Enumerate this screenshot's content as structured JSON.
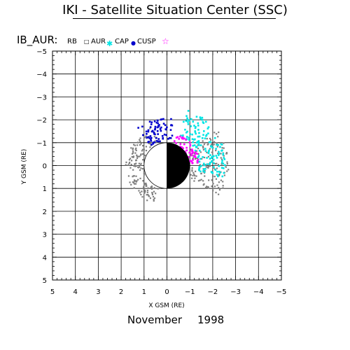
{
  "header": {
    "title": "IKI - Satellite Situation Center (SSC)",
    "panel_label": "IB_AUR:"
  },
  "legend": [
    {
      "label": "RB",
      "symbol": "",
      "color": "#000000"
    },
    {
      "label": "AUR",
      "symbol": "□",
      "color": "#000000"
    },
    {
      "label": "CAP",
      "symbol": "✱",
      "color": "#00e5e5"
    },
    {
      "label": "CUSP",
      "symbol": "●",
      "color": "#0000cc"
    },
    {
      "label": "",
      "symbol": "☆",
      "color": "#ff00ff"
    }
  ],
  "footer": {
    "month": "November",
    "year": "1998"
  },
  "chart_data": {
    "type": "scatter",
    "xlabel": "X GSM (RE)",
    "ylabel": "Y GSM (RE)",
    "xlim": [
      5,
      -5
    ],
    "ylim": [
      -5,
      5
    ],
    "x_ticks": [
      "5",
      "4",
      "3",
      "2",
      "1",
      "0",
      "−1",
      "−2",
      "−3",
      "−4",
      "−5"
    ],
    "y_ticks": [
      "−5",
      "−4",
      "−3",
      "−2",
      "−1",
      "0",
      "1",
      "2",
      "3",
      "4",
      "5"
    ],
    "grid": true,
    "earth": {
      "center": [
        0,
        0
      ],
      "radius": 1,
      "night_side": "negative-x"
    },
    "series": [
      {
        "name": "RB",
        "color": "#808080",
        "regions": [
          {
            "xc": 0.0,
            "yc": 0.0,
            "r_in": 1.05,
            "r_out": 1.8,
            "t_from": -70,
            "t_to": 70
          },
          {
            "xc": 0.0,
            "yc": 0.0,
            "r_in": 1.1,
            "r_out": 2.7,
            "t_from": 150,
            "t_to": 215
          }
        ]
      },
      {
        "name": "CAP",
        "color": "#00e5e5",
        "regions": [
          {
            "xc": 0.0,
            "yc": 0.0,
            "r_in": 1.4,
            "r_out": 2.6,
            "t_from": 168,
            "t_to": 252
          }
        ]
      },
      {
        "name": "CUSP",
        "color": "#0000cc",
        "regions": [
          {
            "xc": 0.0,
            "yc": 0.0,
            "r_in": 1.1,
            "r_out": 2.1,
            "t_from": 260,
            "t_to": 310
          }
        ]
      },
      {
        "name": "AUR",
        "color": "#ff00ff",
        "regions": [
          {
            "xc": 0.0,
            "yc": 0.0,
            "r_in": 0.55,
            "r_out": 1.45,
            "t_from": 185,
            "t_to": 255
          }
        ]
      }
    ]
  }
}
